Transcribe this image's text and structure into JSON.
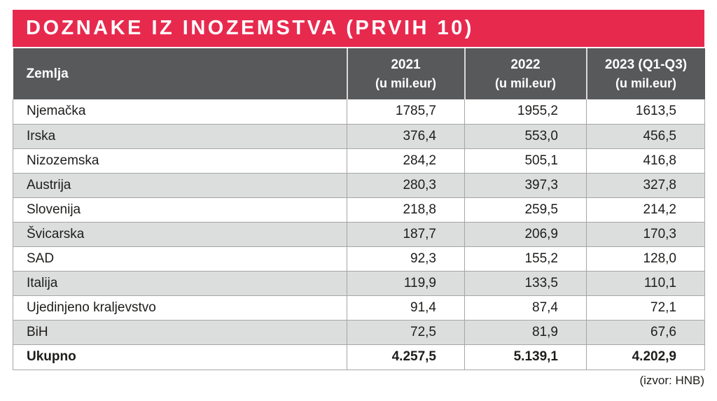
{
  "title": "DOZNAKE IZ INOZEMSTVA (PRVIH 10)",
  "source_note": "(izvor: HNB)",
  "colors": {
    "accent_red": "#e8294e",
    "header_gray": "#58595b",
    "row_alt_gray": "#dcdddd",
    "grid_line": "#a6a6a8"
  },
  "table": {
    "columns": [
      {
        "label": "Zemlja",
        "sublabel": ""
      },
      {
        "label": "2021",
        "sublabel": "(u mil.eur)"
      },
      {
        "label": "2022",
        "sublabel": "(u mil.eur)"
      },
      {
        "label": "2023 (Q1-Q3)",
        "sublabel": "(u mil.eur)"
      }
    ],
    "rows": [
      {
        "country": "Njemačka",
        "y2021": "1785,7",
        "y2022": "1955,2",
        "y2023": "1613,5"
      },
      {
        "country": "Irska",
        "y2021": "376,4",
        "y2022": "553,0",
        "y2023": "456,5"
      },
      {
        "country": "Nizozemska",
        "y2021": "284,2",
        "y2022": "505,1",
        "y2023": "416,8"
      },
      {
        "country": "Austrija",
        "y2021": "280,3",
        "y2022": "397,3",
        "y2023": "327,8"
      },
      {
        "country": "Slovenija",
        "y2021": "218,8",
        "y2022": "259,5",
        "y2023": "214,2"
      },
      {
        "country": "Švicarska",
        "y2021": "187,7",
        "y2022": "206,9",
        "y2023": "170,3"
      },
      {
        "country": "SAD",
        "y2021": "92,3",
        "y2022": "155,2",
        "y2023": "128,0"
      },
      {
        "country": "Italija",
        "y2021": "119,9",
        "y2022": "133,5",
        "y2023": "110,1"
      },
      {
        "country": "Ujedinjeno kraljevstvo",
        "y2021": "91,4",
        "y2022": "87,4",
        "y2023": "72,1"
      },
      {
        "country": "BiH",
        "y2021": "72,5",
        "y2022": "81,9",
        "y2023": "67,6"
      }
    ],
    "total": {
      "label": "Ukupno",
      "y2021": "4.257,5",
      "y2022": "5.139,1",
      "y2023": "4.202,9"
    }
  },
  "chart_data": {
    "type": "table",
    "title": "DOZNAKE IZ INOZEMSTVA (PRVIH 10)",
    "categories": [
      "Njemačka",
      "Irska",
      "Nizozemska",
      "Austrija",
      "Slovenija",
      "Švicarska",
      "SAD",
      "Italija",
      "Ujedinjeno kraljevstvo",
      "BiH"
    ],
    "series": [
      {
        "name": "2021 (u mil.eur)",
        "values": [
          1785.7,
          376.4,
          284.2,
          280.3,
          218.8,
          187.7,
          92.3,
          119.9,
          91.4,
          72.5
        ]
      },
      {
        "name": "2022 (u mil.eur)",
        "values": [
          1955.2,
          553.0,
          505.1,
          397.3,
          259.5,
          206.9,
          155.2,
          133.5,
          87.4,
          81.9
        ]
      },
      {
        "name": "2023 (Q1-Q3) (u mil.eur)",
        "values": [
          1613.5,
          456.5,
          416.8,
          327.8,
          214.2,
          170.3,
          128.0,
          110.1,
          72.1,
          67.6
        ]
      }
    ],
    "totals": {
      "label": "Ukupno",
      "values": [
        4257.5,
        5139.1,
        4202.9
      ]
    },
    "annotations": [
      "(izvor: HNB)"
    ]
  }
}
